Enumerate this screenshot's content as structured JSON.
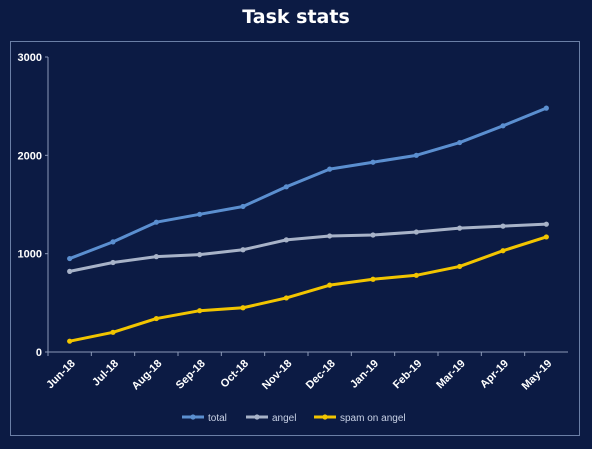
{
  "chart_data": {
    "type": "line",
    "title": "Task stats",
    "xlabel": "",
    "ylabel": "",
    "categories": [
      "Jun-18",
      "Jul-18",
      "Aug-18",
      "Sep-18",
      "Oct-18",
      "Nov-18",
      "Dec-18",
      "Jan-19",
      "Feb-19",
      "Mar-19",
      "Apr-19",
      "May-19"
    ],
    "ylim": [
      0,
      3000
    ],
    "yticks": [
      "0",
      "1000",
      "2000",
      "3000"
    ],
    "grid": false,
    "legend_position": "bottom",
    "series": [
      {
        "name": "total",
        "color": "#5b8fd0",
        "values": [
          950,
          1120,
          1320,
          1400,
          1480,
          1680,
          1860,
          1930,
          2000,
          2130,
          2300,
          2480
        ]
      },
      {
        "name": "angel",
        "color": "#a8b3c8",
        "values": [
          820,
          910,
          970,
          990,
          1040,
          1140,
          1180,
          1190,
          1220,
          1260,
          1280,
          1300
        ]
      },
      {
        "name": "spam on angel",
        "color": "#f2c500",
        "values": [
          110,
          200,
          340,
          420,
          450,
          550,
          680,
          740,
          780,
          870,
          1030,
          1170
        ]
      }
    ]
  }
}
